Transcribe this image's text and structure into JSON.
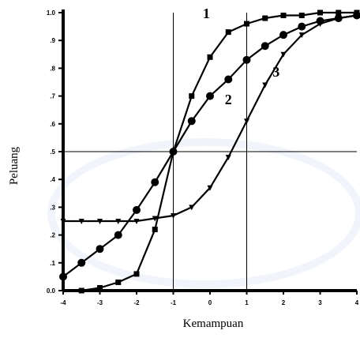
{
  "chart_data": {
    "type": "line",
    "xlabel": "Kemampuan",
    "ylabel": "Peluang",
    "xlim": [
      -4,
      4
    ],
    "ylim": [
      0,
      1
    ],
    "x_ticks": [
      "-4",
      "-3",
      "-2",
      "-1",
      "0",
      "1",
      "2",
      "3",
      "4"
    ],
    "y_ticks": [
      "0.0",
      ".1",
      ".2",
      ".3",
      ".4",
      ".5",
      ".6",
      ".7",
      ".8",
      ".9",
      "1.0"
    ],
    "reference_lines": {
      "x": [
        -1,
        1
      ],
      "y": [
        0.5
      ]
    },
    "series": [
      {
        "name": "1",
        "marker": "square",
        "x": [
          -3.5,
          -3,
          -2.5,
          -2,
          -1.5,
          -1,
          -0.5,
          0,
          0.5,
          1,
          1.5,
          2,
          2.5,
          3,
          3.5,
          4
        ],
        "y": [
          0.0,
          0.01,
          0.03,
          0.06,
          0.22,
          0.5,
          0.7,
          0.84,
          0.93,
          0.96,
          0.98,
          0.99,
          0.99,
          1.0,
          1.0,
          1.0
        ]
      },
      {
        "name": "2",
        "marker": "circle",
        "x": [
          -4,
          -3.5,
          -3,
          -2.5,
          -2,
          -1.5,
          -1,
          -0.5,
          0,
          0.5,
          1,
          1.5,
          2,
          2.5,
          3,
          3.5,
          4
        ],
        "y": [
          0.05,
          0.1,
          0.15,
          0.2,
          0.29,
          0.39,
          0.5,
          0.61,
          0.7,
          0.76,
          0.83,
          0.88,
          0.92,
          0.95,
          0.97,
          0.98,
          0.99
        ]
      },
      {
        "name": "3",
        "marker": "triangle",
        "x": [
          -4,
          -3.5,
          -3,
          -2.5,
          -2,
          -1.5,
          -1,
          -0.5,
          0,
          0.5,
          1,
          1.5,
          2,
          2.5,
          3,
          3.5,
          4
        ],
        "y": [
          0.25,
          0.25,
          0.25,
          0.25,
          0.25,
          0.26,
          0.27,
          0.3,
          0.37,
          0.48,
          0.61,
          0.74,
          0.85,
          0.92,
          0.96,
          0.98,
          0.99
        ]
      }
    ],
    "curve_labels": [
      {
        "text": "1",
        "x": -0.1,
        "y": 0.98
      },
      {
        "text": "2",
        "x": 0.5,
        "y": 0.67
      },
      {
        "text": "3",
        "x": 1.8,
        "y": 0.77
      }
    ]
  }
}
